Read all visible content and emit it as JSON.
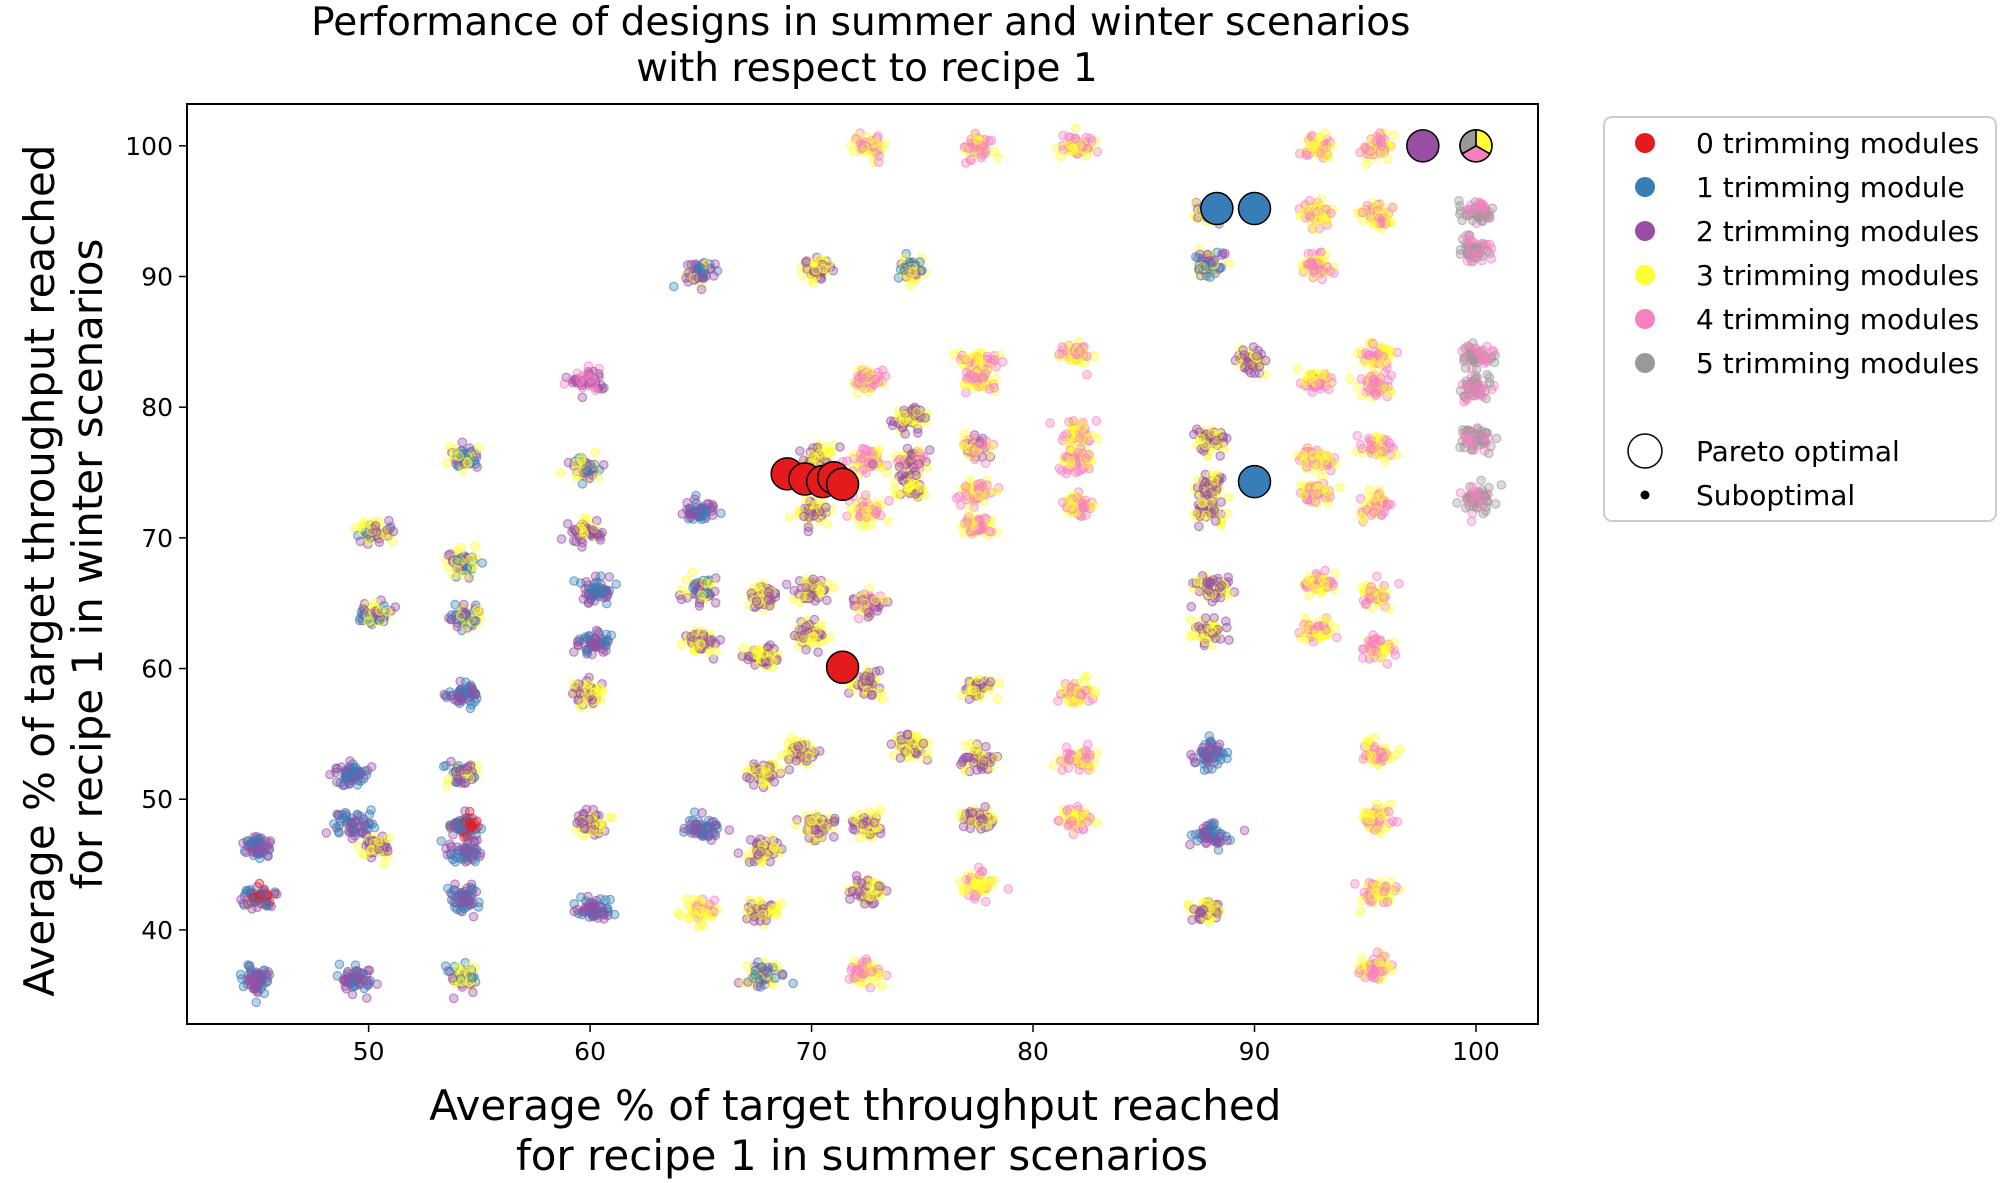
{
  "chart_data": {
    "type": "scatter",
    "title_lines": [
      "Performance of designs in summer and winter scenarios",
      "with respect to recipe 1"
    ],
    "xlabel_lines": [
      "Average % of target throughput reached",
      "for recipe 1 in summer scenarios"
    ],
    "ylabel_lines": [
      "Average % of target throughput reached",
      "for recipe 1 in winter scenarios"
    ],
    "xlim": [
      41.8,
      102.8
    ],
    "ylim": [
      32.8,
      103.2
    ],
    "xticks": [
      50,
      60,
      70,
      80,
      90,
      100
    ],
    "yticks": [
      40,
      50,
      60,
      70,
      80,
      90,
      100
    ],
    "grid": false,
    "legend_position": "outside-right",
    "series": [
      {
        "name": "0 trimming modules",
        "color": "#e41a1c"
      },
      {
        "name": "1 trimming module",
        "color": "#377eb8"
      },
      {
        "name": "2 trimming modules",
        "color": "#984ea3"
      },
      {
        "name": "3 trimming modules",
        "color": "#ffff33"
      },
      {
        "name": "4 trimming modules",
        "color": "#f781bf"
      },
      {
        "name": "5 trimming modules",
        "color": "#999999"
      }
    ],
    "marker_legend": [
      {
        "name": "Pareto optimal",
        "marker": "large-circle"
      },
      {
        "name": "Suboptimal",
        "marker": "small-dot"
      }
    ],
    "pareto_points": [
      {
        "x": 68.9,
        "y": 74.9,
        "series": 0
      },
      {
        "x": 69.7,
        "y": 74.5,
        "series": 0
      },
      {
        "x": 70.5,
        "y": 74.3,
        "series": 0
      },
      {
        "x": 71.0,
        "y": 74.6,
        "series": 0
      },
      {
        "x": 71.4,
        "y": 74.1,
        "series": 0
      },
      {
        "x": 71.4,
        "y": 60.1,
        "series": 0
      },
      {
        "x": 88.3,
        "y": 95.2,
        "series": 1
      },
      {
        "x": 90.0,
        "y": 95.2,
        "series": 1
      },
      {
        "x": 90.0,
        "y": 74.3,
        "series": 1
      },
      {
        "x": 97.6,
        "y": 100.0,
        "series": 2
      },
      {
        "x": 100.0,
        "y": 100.0,
        "series_pie": [
          3,
          4,
          5
        ]
      }
    ],
    "suboptimal_clusters": [
      {
        "x": 45.0,
        "y": 46.3,
        "mix": [
          1,
          2
        ]
      },
      {
        "x": 45.0,
        "y": 42.5,
        "mix": [
          0,
          1,
          2
        ]
      },
      {
        "x": 45.0,
        "y": 36.2,
        "mix": [
          1,
          2
        ]
      },
      {
        "x": 49.3,
        "y": 52.0,
        "mix": [
          1,
          2
        ]
      },
      {
        "x": 49.3,
        "y": 48.0,
        "mix": [
          1,
          2
        ]
      },
      {
        "x": 50.3,
        "y": 46.4,
        "mix": [
          2,
          3
        ]
      },
      {
        "x": 49.5,
        "y": 36.2,
        "mix": [
          1,
          2
        ]
      },
      {
        "x": 50.2,
        "y": 64.2,
        "mix": [
          1,
          2,
          3
        ]
      },
      {
        "x": 50.2,
        "y": 70.4,
        "mix": [
          1,
          2,
          3
        ]
      },
      {
        "x": 54.3,
        "y": 76.0,
        "mix": [
          1,
          2,
          3
        ]
      },
      {
        "x": 54.3,
        "y": 68.0,
        "mix": [
          1,
          2,
          3
        ]
      },
      {
        "x": 54.3,
        "y": 64.0,
        "mix": [
          1,
          2,
          3
        ]
      },
      {
        "x": 54.3,
        "y": 58.0,
        "mix": [
          1,
          2
        ]
      },
      {
        "x": 54.3,
        "y": 52.0,
        "mix": [
          2,
          3,
          1
        ]
      },
      {
        "x": 54.3,
        "y": 48.0,
        "mix": [
          0,
          1,
          2
        ]
      },
      {
        "x": 54.3,
        "y": 46.0,
        "mix": [
          1,
          2
        ]
      },
      {
        "x": 54.3,
        "y": 42.5,
        "mix": [
          1,
          2
        ]
      },
      {
        "x": 54.3,
        "y": 36.3,
        "mix": [
          1,
          2,
          3
        ]
      },
      {
        "x": 59.8,
        "y": 82.0,
        "mix": [
          2,
          4
        ]
      },
      {
        "x": 59.8,
        "y": 75.5,
        "mix": [
          2,
          3,
          1
        ]
      },
      {
        "x": 59.8,
        "y": 70.5,
        "mix": [
          2,
          3
        ]
      },
      {
        "x": 60.2,
        "y": 66.0,
        "mix": [
          1,
          2
        ]
      },
      {
        "x": 60.2,
        "y": 62.0,
        "mix": [
          2,
          1
        ]
      },
      {
        "x": 60.0,
        "y": 58.2,
        "mix": [
          3,
          2
        ]
      },
      {
        "x": 60.0,
        "y": 48.0,
        "mix": [
          2,
          3
        ]
      },
      {
        "x": 60.2,
        "y": 41.5,
        "mix": [
          2,
          1
        ]
      },
      {
        "x": 65.0,
        "y": 90.2,
        "mix": [
          1,
          2,
          3
        ]
      },
      {
        "x": 65.0,
        "y": 72.0,
        "mix": [
          1,
          2
        ]
      },
      {
        "x": 65.0,
        "y": 66.0,
        "mix": [
          2,
          3,
          1
        ]
      },
      {
        "x": 65.0,
        "y": 62.0,
        "mix": [
          2,
          3
        ]
      },
      {
        "x": 65.0,
        "y": 47.8,
        "mix": [
          1,
          2
        ]
      },
      {
        "x": 65.0,
        "y": 41.5,
        "mix": [
          3,
          4
        ]
      },
      {
        "x": 67.8,
        "y": 65.5,
        "mix": [
          3,
          2
        ]
      },
      {
        "x": 67.8,
        "y": 61.0,
        "mix": [
          2,
          3
        ]
      },
      {
        "x": 67.8,
        "y": 52.0,
        "mix": [
          3,
          2
        ]
      },
      {
        "x": 67.8,
        "y": 46.0,
        "mix": [
          3,
          2
        ]
      },
      {
        "x": 67.8,
        "y": 41.5,
        "mix": [
          3,
          2
        ]
      },
      {
        "x": 67.8,
        "y": 36.5,
        "mix": [
          3,
          1,
          2
        ]
      },
      {
        "x": 69.5,
        "y": 53.6,
        "mix": [
          2,
          3
        ]
      },
      {
        "x": 70.0,
        "y": 66.0,
        "mix": [
          2,
          3
        ]
      },
      {
        "x": 70.0,
        "y": 62.5,
        "mix": [
          2,
          3
        ]
      },
      {
        "x": 70.0,
        "y": 72.0,
        "mix": [
          3,
          2
        ]
      },
      {
        "x": 70.3,
        "y": 90.5,
        "mix": [
          3,
          2
        ]
      },
      {
        "x": 70.3,
        "y": 76.0,
        "mix": [
          3,
          2
        ]
      },
      {
        "x": 70.3,
        "y": 48.0,
        "mix": [
          2,
          3
        ]
      },
      {
        "x": 72.5,
        "y": 100.0,
        "mix": [
          4,
          3
        ]
      },
      {
        "x": 72.5,
        "y": 82.2,
        "mix": [
          3,
          4
        ]
      },
      {
        "x": 72.5,
        "y": 76.0,
        "mix": [
          4,
          3
        ]
      },
      {
        "x": 72.5,
        "y": 72.0,
        "mix": [
          3,
          4
        ]
      },
      {
        "x": 72.5,
        "y": 65.0,
        "mix": [
          3,
          4,
          2
        ]
      },
      {
        "x": 72.5,
        "y": 58.8,
        "mix": [
          3,
          2
        ]
      },
      {
        "x": 72.5,
        "y": 48.0,
        "mix": [
          3,
          2
        ]
      },
      {
        "x": 72.5,
        "y": 43.0,
        "mix": [
          3,
          2
        ]
      },
      {
        "x": 72.5,
        "y": 36.8,
        "mix": [
          3,
          4
        ]
      },
      {
        "x": 74.5,
        "y": 90.5,
        "mix": [
          3,
          2,
          1
        ]
      },
      {
        "x": 74.5,
        "y": 79.0,
        "mix": [
          2,
          3
        ]
      },
      {
        "x": 74.5,
        "y": 76.0,
        "mix": [
          2,
          4,
          3
        ]
      },
      {
        "x": 74.5,
        "y": 74.0,
        "mix": [
          3,
          2
        ]
      },
      {
        "x": 74.5,
        "y": 54.0,
        "mix": [
          3,
          2
        ]
      },
      {
        "x": 77.5,
        "y": 100.0,
        "mix": [
          4,
          3
        ]
      },
      {
        "x": 77.5,
        "y": 83.5,
        "mix": [
          3,
          4
        ]
      },
      {
        "x": 77.5,
        "y": 82.0,
        "mix": [
          4,
          3
        ]
      },
      {
        "x": 77.5,
        "y": 77.0,
        "mix": [
          3,
          4,
          2
        ]
      },
      {
        "x": 77.5,
        "y": 73.5,
        "mix": [
          3,
          4
        ]
      },
      {
        "x": 77.5,
        "y": 71.0,
        "mix": [
          3,
          4
        ]
      },
      {
        "x": 77.5,
        "y": 58.5,
        "mix": [
          3,
          2
        ]
      },
      {
        "x": 77.5,
        "y": 53.0,
        "mix": [
          3,
          2
        ]
      },
      {
        "x": 77.5,
        "y": 48.5,
        "mix": [
          3,
          2
        ]
      },
      {
        "x": 77.5,
        "y": 43.5,
        "mix": [
          3,
          4
        ]
      },
      {
        "x": 82.0,
        "y": 100.0,
        "mix": [
          4,
          3
        ]
      },
      {
        "x": 82.0,
        "y": 84.0,
        "mix": [
          4,
          3
        ]
      },
      {
        "x": 82.0,
        "y": 78.0,
        "mix": [
          4,
          3
        ]
      },
      {
        "x": 82.0,
        "y": 76.0,
        "mix": [
          4,
          3
        ]
      },
      {
        "x": 82.0,
        "y": 72.5,
        "mix": [
          4,
          3
        ]
      },
      {
        "x": 82.0,
        "y": 58.0,
        "mix": [
          3,
          4
        ]
      },
      {
        "x": 82.0,
        "y": 53.0,
        "mix": [
          3,
          4
        ]
      },
      {
        "x": 82.0,
        "y": 48.5,
        "mix": [
          3,
          4
        ]
      },
      {
        "x": 88.0,
        "y": 94.8,
        "mix": [
          3,
          2
        ]
      },
      {
        "x": 88.0,
        "y": 91.0,
        "mix": [
          3,
          2,
          1
        ]
      },
      {
        "x": 88.0,
        "y": 77.5,
        "mix": [
          3,
          2
        ]
      },
      {
        "x": 88.0,
        "y": 74.0,
        "mix": [
          3,
          2
        ]
      },
      {
        "x": 88.0,
        "y": 72.0,
        "mix": [
          3,
          2
        ]
      },
      {
        "x": 88.0,
        "y": 66.2,
        "mix": [
          3,
          2
        ]
      },
      {
        "x": 88.0,
        "y": 62.8,
        "mix": [
          3,
          2
        ]
      },
      {
        "x": 88.0,
        "y": 53.5,
        "mix": [
          2,
          1
        ]
      },
      {
        "x": 88.0,
        "y": 47.2,
        "mix": [
          1,
          2
        ]
      },
      {
        "x": 88.0,
        "y": 41.5,
        "mix": [
          2,
          3
        ]
      },
      {
        "x": 89.8,
        "y": 83.5,
        "mix": [
          2,
          3
        ]
      },
      {
        "x": 92.8,
        "y": 100.0,
        "mix": [
          4,
          3
        ]
      },
      {
        "x": 92.8,
        "y": 94.8,
        "mix": [
          4,
          3
        ]
      },
      {
        "x": 92.8,
        "y": 90.8,
        "mix": [
          4,
          3
        ]
      },
      {
        "x": 92.8,
        "y": 82.0,
        "mix": [
          4,
          3
        ]
      },
      {
        "x": 92.8,
        "y": 76.0,
        "mix": [
          4,
          3
        ]
      },
      {
        "x": 92.8,
        "y": 73.5,
        "mix": [
          4,
          3
        ]
      },
      {
        "x": 92.8,
        "y": 66.5,
        "mix": [
          3,
          4
        ]
      },
      {
        "x": 92.8,
        "y": 63.0,
        "mix": [
          3,
          4
        ]
      },
      {
        "x": 95.5,
        "y": 100.0,
        "mix": [
          4,
          3
        ]
      },
      {
        "x": 95.5,
        "y": 94.8,
        "mix": [
          4,
          3
        ]
      },
      {
        "x": 95.5,
        "y": 84.0,
        "mix": [
          4,
          3
        ]
      },
      {
        "x": 95.5,
        "y": 81.5,
        "mix": [
          4,
          3
        ]
      },
      {
        "x": 95.5,
        "y": 77.0,
        "mix": [
          4,
          3
        ]
      },
      {
        "x": 95.5,
        "y": 72.5,
        "mix": [
          4,
          3
        ]
      },
      {
        "x": 95.5,
        "y": 65.5,
        "mix": [
          3,
          4
        ]
      },
      {
        "x": 95.5,
        "y": 61.5,
        "mix": [
          3,
          4
        ]
      },
      {
        "x": 95.5,
        "y": 53.5,
        "mix": [
          3,
          4
        ]
      },
      {
        "x": 95.5,
        "y": 48.5,
        "mix": [
          3,
          4
        ]
      },
      {
        "x": 95.5,
        "y": 43.0,
        "mix": [
          3,
          4
        ]
      },
      {
        "x": 95.5,
        "y": 37.0,
        "mix": [
          3,
          4
        ]
      },
      {
        "x": 100.0,
        "y": 95.0,
        "mix": [
          5,
          4
        ]
      },
      {
        "x": 100.0,
        "y": 92.0,
        "mix": [
          5,
          4
        ]
      },
      {
        "x": 100.0,
        "y": 84.0,
        "mix": [
          5,
          4
        ]
      },
      {
        "x": 100.0,
        "y": 81.5,
        "mix": [
          5,
          4
        ]
      },
      {
        "x": 100.0,
        "y": 77.5,
        "mix": [
          5,
          4
        ]
      },
      {
        "x": 100.0,
        "y": 73.0,
        "mix": [
          5,
          4
        ]
      }
    ]
  }
}
